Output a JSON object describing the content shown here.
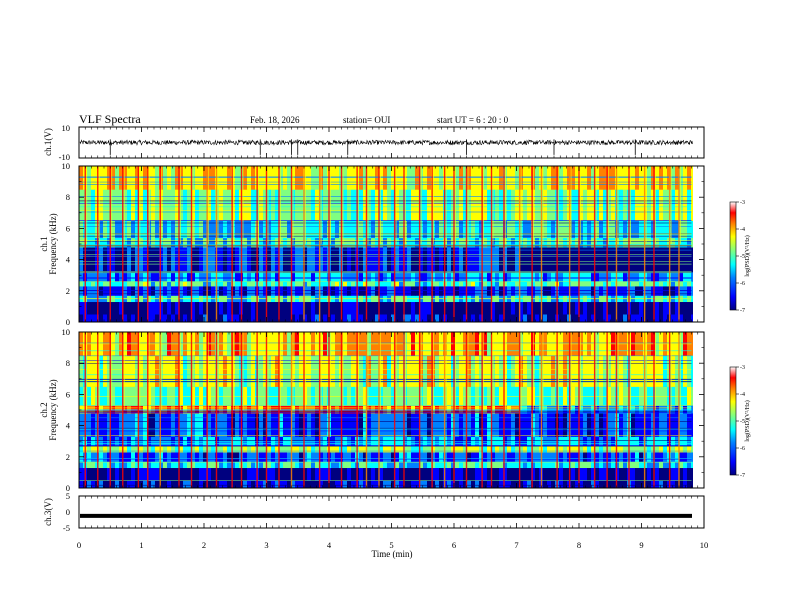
{
  "header": {
    "title": "VLF Spectra",
    "date": "Feb. 18, 2026",
    "station": "station= OUI",
    "start": "start  UT  =   6  : 20 : 0"
  },
  "colors": {
    "spectrum_scale": [
      "#00007f",
      "#0000ff",
      "#0080ff",
      "#00ffff",
      "#80ff80",
      "#ffff00",
      "#ff8000",
      "#ff0000",
      "#ffffff"
    ]
  },
  "chart_data": [
    {
      "type": "line",
      "panel": "ch1_waveform",
      "ylabel": "ch.1(V)",
      "ylim": [
        -10,
        10
      ],
      "yticks": [
        "10",
        "-10"
      ],
      "xlim": [
        0,
        10
      ],
      "baseline": 0,
      "amplitude_range": [
        -1.5,
        1.5
      ]
    },
    {
      "type": "heatmap",
      "panel": "ch1_spectrogram",
      "ylabel": "ch.1\nFrequency (kHz)",
      "ylim": [
        0,
        10
      ],
      "yticks": [
        "0",
        "2",
        "4",
        "6",
        "8",
        "10"
      ],
      "xlim": [
        0,
        9.8
      ],
      "colorbar": {
        "label": "log(PSD)(V²/Hz)",
        "range": [
          -7,
          -3
        ],
        "ticks": [
          "-3",
          "-4",
          "-5",
          "-6",
          "-7"
        ]
      },
      "bands": [
        {
          "freq": [
            0,
            0.5
          ],
          "level": -6.5
        },
        {
          "freq": [
            0.5,
            1.3
          ],
          "level": -6.8
        },
        {
          "freq": [
            1.3,
            1.7
          ],
          "level": -5.2
        },
        {
          "freq": [
            1.7,
            2.3
          ],
          "level": -6.2
        },
        {
          "freq": [
            2.3,
            2.6
          ],
          "level": -5.0
        },
        {
          "freq": [
            2.6,
            3.2
          ],
          "level": -5.6
        },
        {
          "freq": [
            3.2,
            4.8
          ],
          "level": -6.3
        },
        {
          "freq": [
            4.8,
            5.4
          ],
          "level": -5.2
        },
        {
          "freq": [
            5.4,
            6.5
          ],
          "level": -5.3
        },
        {
          "freq": [
            6.5,
            8.5
          ],
          "level": -4.8
        },
        {
          "freq": [
            8.5,
            10
          ],
          "level": -4.2
        }
      ],
      "sferic_times_min": [
        0.1,
        0.3,
        0.5,
        0.7,
        0.95,
        1.1,
        1.3,
        1.6,
        1.8,
        2.05,
        2.2,
        2.45,
        2.6,
        2.85,
        3.0,
        3.2,
        3.4,
        3.6,
        3.85,
        4.0,
        4.2,
        4.45,
        4.6,
        4.8,
        5.05,
        5.2,
        5.45,
        5.65,
        5.85,
        6.0,
        6.2,
        6.45,
        6.6,
        6.8,
        7.05,
        7.25,
        7.4,
        7.65,
        7.85,
        8.0,
        8.25,
        8.45,
        8.6,
        8.8,
        9.05,
        9.2,
        9.45,
        9.6
      ]
    },
    {
      "type": "heatmap",
      "panel": "ch2_spectrogram",
      "ylabel": "ch.2\nFrequency (kHz)",
      "ylim": [
        0,
        10
      ],
      "yticks": [
        "0",
        "2",
        "4",
        "6",
        "8",
        "10"
      ],
      "xlim": [
        0,
        9.8
      ],
      "colorbar": {
        "label": "log(PSD)(V²/Hz)",
        "range": [
          -7,
          -3
        ],
        "ticks": [
          "-3",
          "-4",
          "-5",
          "-6",
          "-7"
        ]
      },
      "bands": [
        {
          "freq": [
            0,
            0.5
          ],
          "level": -6.4
        },
        {
          "freq": [
            0.5,
            1.3
          ],
          "level": -6.7
        },
        {
          "freq": [
            1.3,
            1.7
          ],
          "level": -5.2
        },
        {
          "freq": [
            1.7,
            2.3
          ],
          "level": -6.0
        },
        {
          "freq": [
            2.3,
            2.7
          ],
          "level": -4.6
        },
        {
          "freq": [
            2.7,
            3.3
          ],
          "level": -5.6
        },
        {
          "freq": [
            3.3,
            4.8
          ],
          "level": -6.0
        },
        {
          "freq": [
            4.8,
            5.3
          ],
          "level": -3.6
        },
        {
          "freq": [
            5.3,
            6.5
          ],
          "level": -4.9
        },
        {
          "freq": [
            6.5,
            8.5
          ],
          "level": -4.5
        },
        {
          "freq": [
            8.5,
            10
          ],
          "level": -4.0
        }
      ],
      "sferic_times_min": [
        0.1,
        0.3,
        0.5,
        0.7,
        0.95,
        1.1,
        1.3,
        1.6,
        1.8,
        2.05,
        2.2,
        2.45,
        2.6,
        2.85,
        3.0,
        3.2,
        3.4,
        3.6,
        3.85,
        4.0,
        4.2,
        4.45,
        4.6,
        4.8,
        5.05,
        5.2,
        5.45,
        5.65,
        5.85,
        6.0,
        6.2,
        6.45,
        6.6,
        6.8,
        7.05,
        7.25,
        7.4,
        7.65,
        7.85,
        8.0,
        8.25,
        8.45,
        8.6,
        8.8,
        9.05,
        9.2,
        9.45,
        9.6
      ]
    },
    {
      "type": "line",
      "panel": "ch3_waveform",
      "ylabel": "ch.3(V)",
      "ylim": [
        -5,
        5
      ],
      "yticks": [
        "5",
        "0",
        "-5"
      ],
      "xlim": [
        0,
        10
      ],
      "constant_value": -1.2
    }
  ],
  "xaxis": {
    "label": "Time  (min)",
    "ticks": [
      "0",
      "1",
      "2",
      "3",
      "4",
      "5",
      "6",
      "7",
      "8",
      "9",
      "10"
    ]
  }
}
